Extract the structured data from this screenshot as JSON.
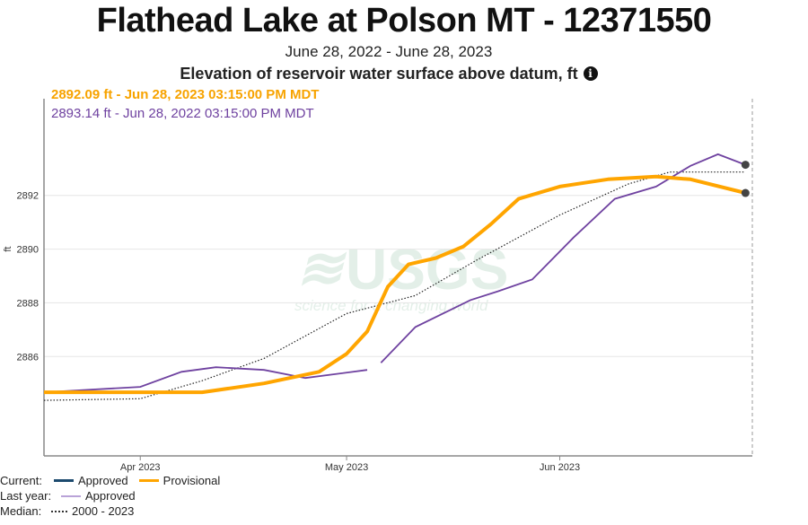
{
  "header": {
    "title": "Flathead Lake at Polson MT - 12371550",
    "date_range": "June 28, 2022 - June 28, 2023",
    "parameter": "Elevation of reservoir water surface above datum, ft",
    "info_icon": "info-circle-icon",
    "current_value": "2892.09 ft - Jun 28, 2023 03:15:00 PM MDT",
    "last_year_value": "2893.14 ft - Jun 28, 2022 03:15:00 PM MDT"
  },
  "watermark": {
    "text": "USGS",
    "tagline": "science for a changing world"
  },
  "legend": {
    "current_label": "Current:",
    "approved": "Approved",
    "provisional": "Provisional",
    "last_year_label": "Last year:",
    "last_year_approved": "Approved",
    "median_label": "Median:",
    "median_range": "2000 - 2023"
  },
  "chart_data": {
    "type": "line",
    "title": "",
    "xlabel": "",
    "ylabel": "ft",
    "xlim": [
      "2023-03-18",
      "2023-06-29"
    ],
    "ylim": [
      2882.3,
      2895.6
    ],
    "x_ticks": [
      {
        "date": "2023-04-01",
        "label": "Apr 2023"
      },
      {
        "date": "2023-05-01",
        "label": "May 2023"
      },
      {
        "date": "2023-06-01",
        "label": "Jun 2023"
      }
    ],
    "y_ticks": [
      2886,
      2888,
      2890,
      2892
    ],
    "grid": "horizontal",
    "colors": {
      "current_approved": "#1c4a6e",
      "current_provisional": "#ffa500",
      "last_year": "#6f42a0",
      "median": "#222222"
    },
    "series": [
      {
        "name": "Provisional",
        "key": "current",
        "points": [
          [
            "2023-03-18",
            2884.67
          ],
          [
            "2023-04-01",
            2884.67
          ],
          [
            "2023-04-10",
            2884.67
          ],
          [
            "2023-04-19",
            2885.0
          ],
          [
            "2023-04-27",
            2885.43
          ],
          [
            "2023-05-01",
            2886.1
          ],
          [
            "2023-05-04",
            2886.93
          ],
          [
            "2023-05-07",
            2888.6
          ],
          [
            "2023-05-10",
            2889.43
          ],
          [
            "2023-05-14",
            2889.67
          ],
          [
            "2023-05-18",
            2890.1
          ],
          [
            "2023-05-22",
            2890.93
          ],
          [
            "2023-05-26",
            2891.87
          ],
          [
            "2023-06-01",
            2892.33
          ],
          [
            "2023-06-08",
            2892.6
          ],
          [
            "2023-06-15",
            2892.7
          ],
          [
            "2023-06-20",
            2892.6
          ],
          [
            "2023-06-28",
            2892.09
          ]
        ]
      },
      {
        "name": "Approved",
        "key": "last_year",
        "segments": [
          [
            [
              "2023-03-18",
              2884.67
            ],
            [
              "2023-04-01",
              2884.87
            ],
            [
              "2023-04-07",
              2885.43
            ],
            [
              "2023-04-12",
              2885.6
            ],
            [
              "2023-04-19",
              2885.5
            ],
            [
              "2023-04-25",
              2885.2
            ],
            [
              "2023-05-04",
              2885.5
            ]
          ],
          [
            [
              "2023-05-06",
              2885.77
            ],
            [
              "2023-05-11",
              2887.1
            ],
            [
              "2023-05-19",
              2888.1
            ],
            [
              "2023-05-23",
              2888.43
            ],
            [
              "2023-05-28",
              2888.87
            ],
            [
              "2023-06-03",
              2890.43
            ],
            [
              "2023-06-09",
              2891.87
            ],
            [
              "2023-06-15",
              2892.33
            ],
            [
              "2023-06-20",
              2893.1
            ],
            [
              "2023-06-24",
              2893.53
            ],
            [
              "2023-06-28",
              2893.14
            ]
          ]
        ]
      },
      {
        "name": "2000 - 2023",
        "key": "median",
        "points": [
          [
            "2023-03-18",
            2884.37
          ],
          [
            "2023-04-01",
            2884.43
          ],
          [
            "2023-04-10",
            2885.1
          ],
          [
            "2023-04-19",
            2885.93
          ],
          [
            "2023-05-01",
            2887.6
          ],
          [
            "2023-05-11",
            2888.27
          ],
          [
            "2023-05-20",
            2889.6
          ],
          [
            "2023-06-01",
            2891.27
          ],
          [
            "2023-06-11",
            2892.43
          ],
          [
            "2023-06-17",
            2892.87
          ],
          [
            "2023-06-28",
            2892.87
          ]
        ]
      }
    ]
  }
}
